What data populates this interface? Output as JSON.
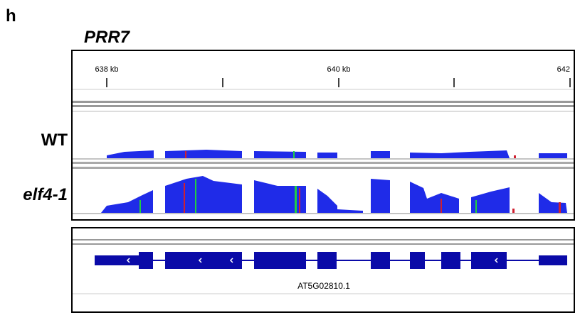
{
  "panel_label": "h",
  "gene_title": "PRR7",
  "ruler": {
    "labels": [
      "638 kb",
      "640 kb",
      "642"
    ]
  },
  "tracks": [
    {
      "label": "WT"
    },
    {
      "label": "elf4-1"
    }
  ],
  "gene_model": {
    "name": "AT5G02810.1"
  }
}
